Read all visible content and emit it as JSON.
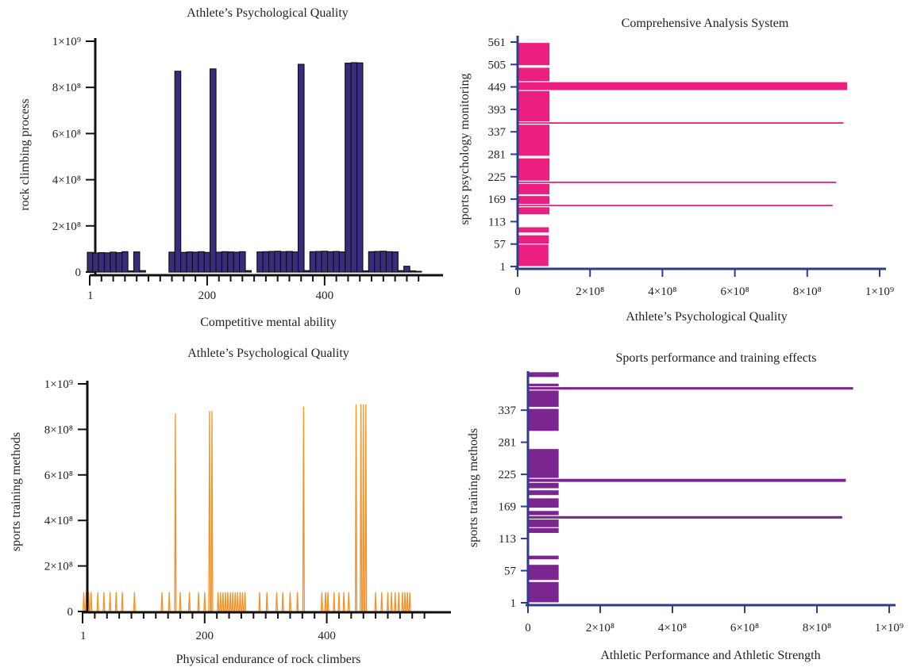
{
  "chart_data": [
    {
      "type": "bar",
      "orientation": "vertical",
      "title": "Athlete’s Psychological Quality",
      "xlabel": "Competitive mental ability",
      "ylabel": "rock climbing process",
      "xlim": [
        0,
        580
      ],
      "ylim": [
        0,
        1000000000
      ],
      "x_ticks": [
        1,
        200,
        400
      ],
      "x_tick_labels": [
        "1",
        "200",
        "400"
      ],
      "y_ticks": [
        0,
        200000000,
        400000000,
        600000000,
        800000000,
        1000000000
      ],
      "y_tick_labels": [
        "0",
        "2×10⁸",
        "4×10⁸",
        "6×10⁸",
        "8×10⁸",
        "1×10⁹"
      ],
      "color": "#3a2b7d",
      "x": [
        1,
        10,
        20,
        30,
        40,
        50,
        60,
        70,
        80,
        90,
        140,
        150,
        160,
        170,
        180,
        190,
        200,
        210,
        220,
        230,
        240,
        250,
        260,
        270,
        290,
        300,
        310,
        320,
        330,
        340,
        350,
        360,
        370,
        380,
        390,
        400,
        410,
        420,
        430,
        440,
        450,
        460,
        470,
        480,
        490,
        500,
        510,
        520,
        530,
        540,
        550,
        560
      ],
      "values": [
        85000000,
        82000000,
        84000000,
        83000000,
        86000000,
        84000000,
        88000000,
        5000000,
        87000000,
        6000000,
        86000000,
        870000000,
        85000000,
        87000000,
        86000000,
        88000000,
        85000000,
        880000000,
        86000000,
        88000000,
        87000000,
        86000000,
        88000000,
        6000000,
        87000000,
        88000000,
        89000000,
        90000000,
        88000000,
        89000000,
        87000000,
        900000000,
        6000000,
        88000000,
        89000000,
        90000000,
        88000000,
        89000000,
        87000000,
        905000000,
        907000000,
        906000000,
        5000000,
        88000000,
        89000000,
        90000000,
        88000000,
        87000000,
        6000000,
        25000000,
        5000000,
        3000000
      ]
    },
    {
      "type": "bar",
      "orientation": "horizontal",
      "title": "Comprehensive Analysis System",
      "xlabel": "Athlete’s Psychological Quality",
      "ylabel": "sports psychology monitoring",
      "xlim": [
        0,
        1000000000
      ],
      "ylim": [
        1,
        561
      ],
      "x_ticks": [
        0,
        200000000,
        400000000,
        600000000,
        800000000,
        1000000000
      ],
      "x_tick_labels": [
        "0",
        "2×10⁸",
        "4×10⁸",
        "6×10⁸",
        "8×10⁸",
        "1×10⁹"
      ],
      "y_ticks": [
        1,
        57,
        113,
        169,
        225,
        281,
        337,
        393,
        449,
        505,
        561
      ],
      "y_tick_labels": [
        "1",
        "57",
        "113",
        "169",
        "225",
        "281",
        "337",
        "393",
        "449",
        "505",
        "561"
      ],
      "color": "#ec1f81",
      "segments": [
        {
          "from": 1,
          "to": 57,
          "value": 85000000
        },
        {
          "from": 57,
          "to": 80,
          "value": 86000000
        },
        {
          "from": 85,
          "to": 100,
          "value": 86000000
        },
        {
          "from": 130,
          "to": 150,
          "value": 88000000
        },
        {
          "from": 150,
          "to": 156,
          "value": 870000000
        },
        {
          "from": 156,
          "to": 178,
          "value": 88000000
        },
        {
          "from": 180,
          "to": 208,
          "value": 88000000
        },
        {
          "from": 208,
          "to": 214,
          "value": 880000000
        },
        {
          "from": 214,
          "to": 272,
          "value": 88000000
        },
        {
          "from": 276,
          "to": 356,
          "value": 88000000
        },
        {
          "from": 356,
          "to": 362,
          "value": 900000000
        },
        {
          "from": 362,
          "to": 440,
          "value": 88000000
        },
        {
          "from": 440,
          "to": 462,
          "value": 910000000
        },
        {
          "from": 462,
          "to": 498,
          "value": 88000000
        },
        {
          "from": 502,
          "to": 560,
          "value": 88000000
        }
      ]
    },
    {
      "type": "line",
      "title": "Athlete’s Psychological Quality",
      "xlabel": "Physical endurance of rock climbers",
      "ylabel": "sports training methods",
      "xlim": [
        0,
        580
      ],
      "ylim": [
        0,
        1000000000
      ],
      "x_ticks": [
        1,
        200,
        400
      ],
      "x_tick_labels": [
        "1",
        "200",
        "400"
      ],
      "y_ticks": [
        0,
        200000000,
        400000000,
        600000000,
        800000000,
        1000000000
      ],
      "y_tick_labels": [
        "0",
        "2×10⁸",
        "4×10⁸",
        "6×10⁸",
        "8×10⁸",
        "1×10⁹"
      ],
      "color": "#f29227",
      "spikes": [
        {
          "x": 2,
          "y": 85000000
        },
        {
          "x": 6,
          "y": 85000000
        },
        {
          "x": 10,
          "y": 85000000
        },
        {
          "x": 14,
          "y": 85000000
        },
        {
          "x": 25,
          "y": 85000000
        },
        {
          "x": 35,
          "y": 85000000
        },
        {
          "x": 45,
          "y": 85000000
        },
        {
          "x": 55,
          "y": 85000000
        },
        {
          "x": 65,
          "y": 85000000
        },
        {
          "x": 85,
          "y": 85000000
        },
        {
          "x": 130,
          "y": 85000000
        },
        {
          "x": 142,
          "y": 85000000
        },
        {
          "x": 152,
          "y": 870000000
        },
        {
          "x": 160,
          "y": 85000000
        },
        {
          "x": 175,
          "y": 85000000
        },
        {
          "x": 190,
          "y": 85000000
        },
        {
          "x": 200,
          "y": 85000000
        },
        {
          "x": 208,
          "y": 880000000
        },
        {
          "x": 212,
          "y": 880000000
        },
        {
          "x": 222,
          "y": 85000000
        },
        {
          "x": 226,
          "y": 85000000
        },
        {
          "x": 230,
          "y": 85000000
        },
        {
          "x": 234,
          "y": 85000000
        },
        {
          "x": 238,
          "y": 85000000
        },
        {
          "x": 242,
          "y": 85000000
        },
        {
          "x": 246,
          "y": 85000000
        },
        {
          "x": 250,
          "y": 85000000
        },
        {
          "x": 254,
          "y": 85000000
        },
        {
          "x": 258,
          "y": 85000000
        },
        {
          "x": 262,
          "y": 85000000
        },
        {
          "x": 266,
          "y": 85000000
        },
        {
          "x": 290,
          "y": 85000000
        },
        {
          "x": 302,
          "y": 85000000
        },
        {
          "x": 318,
          "y": 85000000
        },
        {
          "x": 328,
          "y": 85000000
        },
        {
          "x": 340,
          "y": 85000000
        },
        {
          "x": 352,
          "y": 85000000
        },
        {
          "x": 362,
          "y": 900000000
        },
        {
          "x": 392,
          "y": 85000000
        },
        {
          "x": 398,
          "y": 85000000
        },
        {
          "x": 402,
          "y": 85000000
        },
        {
          "x": 412,
          "y": 85000000
        },
        {
          "x": 420,
          "y": 85000000
        },
        {
          "x": 428,
          "y": 85000000
        },
        {
          "x": 436,
          "y": 85000000
        },
        {
          "x": 448,
          "y": 910000000
        },
        {
          "x": 456,
          "y": 910000000
        },
        {
          "x": 460,
          "y": 910000000
        },
        {
          "x": 464,
          "y": 910000000
        },
        {
          "x": 480,
          "y": 85000000
        },
        {
          "x": 490,
          "y": 85000000
        },
        {
          "x": 500,
          "y": 85000000
        },
        {
          "x": 506,
          "y": 85000000
        },
        {
          "x": 512,
          "y": 85000000
        },
        {
          "x": 518,
          "y": 85000000
        },
        {
          "x": 524,
          "y": 85000000
        },
        {
          "x": 528,
          "y": 85000000
        },
        {
          "x": 532,
          "y": 85000000
        },
        {
          "x": 536,
          "y": 85000000
        }
      ]
    },
    {
      "type": "bar",
      "orientation": "horizontal",
      "title": "Sports performance and training effects",
      "xlabel": "Athletic Performance and Athletic Strength",
      "ylabel": "sports training methods",
      "xlim": [
        0,
        1000000000
      ],
      "ylim": [
        1,
        405
      ],
      "y_ticks": [
        1,
        57,
        113,
        169,
        225,
        281,
        337
      ],
      "y_tick_labels": [
        "1",
        "57",
        "113",
        "169",
        "225",
        "281",
        "337"
      ],
      "x_ticks": [
        0,
        200000000,
        400000000,
        600000000,
        800000000,
        1000000000
      ],
      "x_tick_labels": [
        "0",
        "2×10⁸",
        "4×10⁸",
        "6×10⁸",
        "8×10⁸",
        "1×10⁹"
      ],
      "color": "#7b2590",
      "segments": [
        {
          "from": 1,
          "to": 38,
          "value": 85000000
        },
        {
          "from": 40,
          "to": 68,
          "value": 85000000
        },
        {
          "from": 76,
          "to": 84,
          "value": 85000000
        },
        {
          "from": 122,
          "to": 132,
          "value": 85000000
        },
        {
          "from": 132,
          "to": 147,
          "value": 85000000
        },
        {
          "from": 147,
          "to": 153,
          "value": 870000000
        },
        {
          "from": 153,
          "to": 162,
          "value": 85000000
        },
        {
          "from": 166,
          "to": 184,
          "value": 85000000
        },
        {
          "from": 188,
          "to": 198,
          "value": 85000000
        },
        {
          "from": 200,
          "to": 211,
          "value": 85000000
        },
        {
          "from": 211,
          "to": 218,
          "value": 880000000
        },
        {
          "from": 218,
          "to": 270,
          "value": 85000000
        },
        {
          "from": 300,
          "to": 340,
          "value": 85000000
        },
        {
          "from": 342,
          "to": 372,
          "value": 85000000
        },
        {
          "from": 372,
          "to": 378,
          "value": 900000000
        },
        {
          "from": 378,
          "to": 384,
          "value": 85000000
        },
        {
          "from": 394,
          "to": 404,
          "value": 85000000
        }
      ]
    }
  ]
}
